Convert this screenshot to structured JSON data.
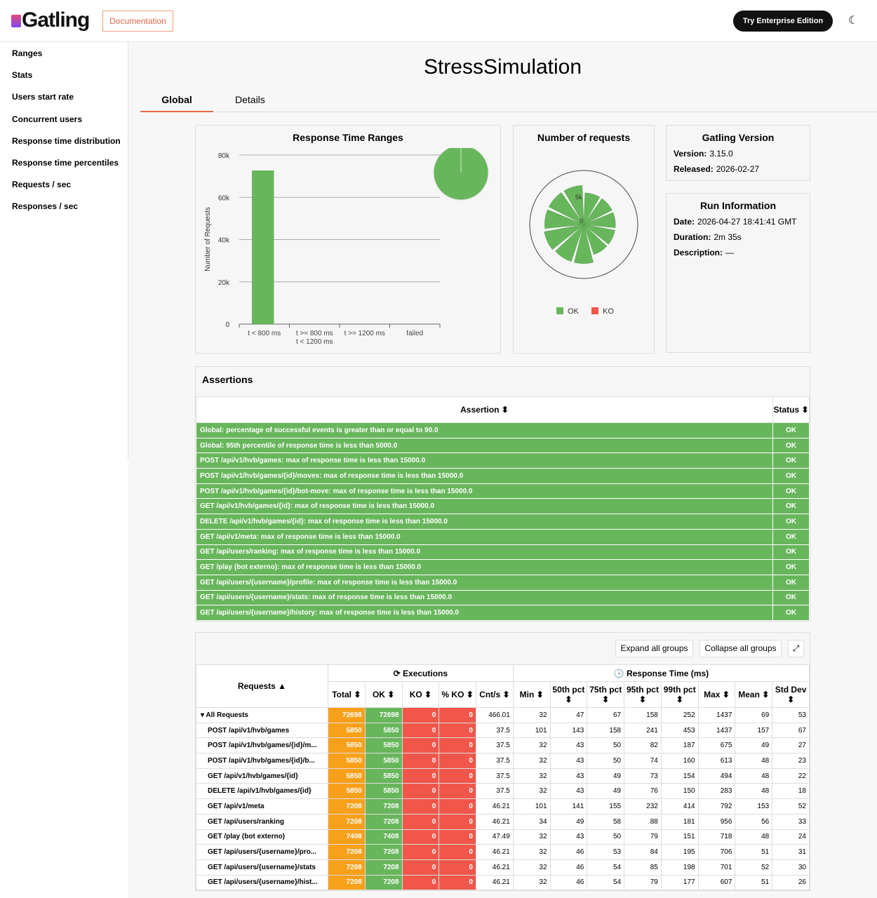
{
  "header": {
    "logo": "Gatling",
    "documentation": "Documentation",
    "enterprise": "Try Enterprise Edition",
    "theme_icon": "moon-icon"
  },
  "sidebar": {
    "items": [
      "Ranges",
      "Stats",
      "Users start rate",
      "Concurrent users",
      "Response time distribution",
      "Response time percentiles",
      "Requests / sec",
      "Responses / sec"
    ]
  },
  "page": {
    "title": "StressSimulation",
    "tabs": [
      "Global",
      "Details"
    ]
  },
  "colors": {
    "ok": "#68b65c",
    "ko": "#f0564a",
    "total": "#f9a01a",
    "accent": "#e2684a"
  },
  "chart_data": [
    {
      "type": "bar",
      "title": "Response Time Ranges",
      "ylabel": "Number of Requests",
      "categories": [
        "t < 800 ms",
        "t >= 800 ms\nt < 1200 ms",
        "t >= 1200 ms",
        "failed"
      ],
      "values": [
        72698,
        0,
        0,
        0
      ],
      "ylim": [
        0,
        80000
      ],
      "yticks": [
        "0",
        "20k",
        "40k",
        "60k",
        "80k"
      ],
      "pie": [
        {
          "label": "t < 800 ms",
          "value": 72698
        }
      ]
    },
    {
      "type": "polar",
      "title": "Number of requests",
      "categories": [
        "POST /api/v1/hvb/games",
        "POST /api/v1/hvb/games/{id}/moves",
        "POST /api/v1/hvb/games/{id}/bot-move",
        "GET /api/v1/hvb/games/{id}",
        "DELETE /api/v1/hvb/games/{id}",
        "GET /api/v1/meta",
        "GET /api/users/ranking",
        "GET /play (bot externo)",
        "GET /api/users/{username}/profile",
        "GET /api/users/{username}/stats",
        "GET /api/users/{username}/history"
      ],
      "series": [
        {
          "name": "OK",
          "values": [
            5850,
            5850,
            5850,
            5850,
            5850,
            7208,
            7208,
            7408,
            7208,
            7208,
            7208
          ]
        },
        {
          "name": "KO",
          "values": [
            0,
            0,
            0,
            0,
            0,
            0,
            0,
            0,
            0,
            0,
            0
          ]
        }
      ],
      "rticks": [
        "0",
        "5k"
      ],
      "legend": [
        "OK",
        "KO"
      ]
    }
  ],
  "gatling_version": {
    "title": "Gatling Version",
    "version_label": "Version:",
    "version": "3.15.0",
    "released_label": "Released:",
    "released": "2026-02-27"
  },
  "run_info": {
    "title": "Run Information",
    "date_label": "Date:",
    "date": "2026-04-27 18:41:41 GMT",
    "duration_label": "Duration:",
    "duration": "2m 35s",
    "description_label": "Description:",
    "description": "—"
  },
  "assertions": {
    "title": "Assertions",
    "col_assertion": "Assertion ⬍",
    "col_status": "Status ⬍",
    "rows": [
      [
        "Global: percentage of successful events is greater than or equal to 90.0",
        "OK"
      ],
      [
        "Global: 95th percentile of response time is less than 5000.0",
        "OK"
      ],
      [
        "POST /api/v1/hvb/games: max of response time is less than 15000.0",
        "OK"
      ],
      [
        "POST /api/v1/hvb/games/{id}/moves: max of response time is less than 15000.0",
        "OK"
      ],
      [
        "POST /api/v1/hvb/games/{id}/bot-move: max of response time is less than 15000.0",
        "OK"
      ],
      [
        "GET /api/v1/hvb/games/{id}: max of response time is less than 15000.0",
        "OK"
      ],
      [
        "DELETE /api/v1/hvb/games/{id}: max of response time is less than 15000.0",
        "OK"
      ],
      [
        "GET /api/v1/meta: max of response time is less than 15000.0",
        "OK"
      ],
      [
        "GET /api/users/ranking: max of response time is less than 15000.0",
        "OK"
      ],
      [
        "GET /play (bot externo): max of response time is less than 15000.0",
        "OK"
      ],
      [
        "GET /api/users/{username}/profile: max of response time is less than 15000.0",
        "OK"
      ],
      [
        "GET /api/users/{username}/stats: max of response time is less than 15000.0",
        "OK"
      ],
      [
        "GET /api/users/{username}/history: max of response time is less than 15000.0",
        "OK"
      ]
    ]
  },
  "requests": {
    "expand": "Expand all groups",
    "collapse": "Collapse all groups",
    "col_requests": "Requests ▲",
    "executions": "⟳ Executions",
    "response_time": "🕓 Response Time (ms)",
    "columns": [
      "Total ⬍",
      "OK ⬍",
      "KO ⬍",
      "% KO ⬍",
      "Cnt/s ⬍",
      "Min ⬍",
      "50th pct ⬍",
      "75th pct ⬍",
      "95th pct ⬍",
      "99th pct ⬍",
      "Max ⬍",
      "Mean ⬍",
      "Std Dev ⬍"
    ],
    "rows": [
      [
        "▾ All Requests",
        "72698",
        "72698",
        "0",
        "0",
        "466.01",
        "32",
        "47",
        "67",
        "158",
        "252",
        "1437",
        "69",
        "53"
      ],
      [
        "POST /api/v1/hvb/games",
        "5850",
        "5850",
        "0",
        "0",
        "37.5",
        "101",
        "143",
        "158",
        "241",
        "453",
        "1437",
        "157",
        "67"
      ],
      [
        "POST /api/v1/hvb/games/{id}/m...",
        "5850",
        "5850",
        "0",
        "0",
        "37.5",
        "32",
        "43",
        "50",
        "82",
        "187",
        "675",
        "49",
        "27"
      ],
      [
        "POST /api/v1/hvb/games/{id}/b...",
        "5850",
        "5850",
        "0",
        "0",
        "37.5",
        "32",
        "43",
        "50",
        "74",
        "160",
        "613",
        "48",
        "23"
      ],
      [
        "GET /api/v1/hvb/games/{id}",
        "5850",
        "5850",
        "0",
        "0",
        "37.5",
        "32",
        "43",
        "49",
        "73",
        "154",
        "494",
        "48",
        "22"
      ],
      [
        "DELETE /api/v1/hvb/games/{id}",
        "5850",
        "5850",
        "0",
        "0",
        "37.5",
        "32",
        "43",
        "49",
        "76",
        "150",
        "283",
        "48",
        "18"
      ],
      [
        "GET /api/v1/meta",
        "7208",
        "7208",
        "0",
        "0",
        "46.21",
        "101",
        "141",
        "155",
        "232",
        "414",
        "792",
        "153",
        "52"
      ],
      [
        "GET /api/users/ranking",
        "7208",
        "7208",
        "0",
        "0",
        "46.21",
        "34",
        "49",
        "58",
        "88",
        "181",
        "956",
        "56",
        "33"
      ],
      [
        "GET /play (bot externo)",
        "7408",
        "7408",
        "0",
        "0",
        "47.49",
        "32",
        "43",
        "50",
        "79",
        "151",
        "718",
        "48",
        "24"
      ],
      [
        "GET /api/users/{username}/pro...",
        "7208",
        "7208",
        "0",
        "0",
        "46.21",
        "32",
        "46",
        "53",
        "84",
        "195",
        "706",
        "51",
        "31"
      ],
      [
        "GET /api/users/{username}/stats",
        "7208",
        "7208",
        "0",
        "0",
        "46.21",
        "32",
        "46",
        "54",
        "85",
        "198",
        "701",
        "52",
        "30"
      ],
      [
        "GET /api/users/{username}/hist...",
        "7208",
        "7208",
        "0",
        "0",
        "46.21",
        "32",
        "46",
        "54",
        "79",
        "177",
        "607",
        "51",
        "26"
      ]
    ]
  }
}
